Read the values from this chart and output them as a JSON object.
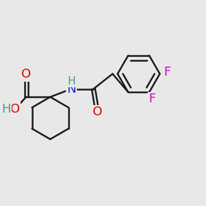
{
  "background_color": "#e8e8e8",
  "bond_color": "#1a1a1a",
  "atom_colors": {
    "O": "#dd0000",
    "N": "#2222dd",
    "F": "#cc00cc",
    "H_cooh": "#4a9a8a",
    "H_nh": "#4a9a8a"
  },
  "font_size_large": 13,
  "font_size_small": 11,
  "fig_size": [
    3.0,
    3.0
  ],
  "dpi": 100
}
